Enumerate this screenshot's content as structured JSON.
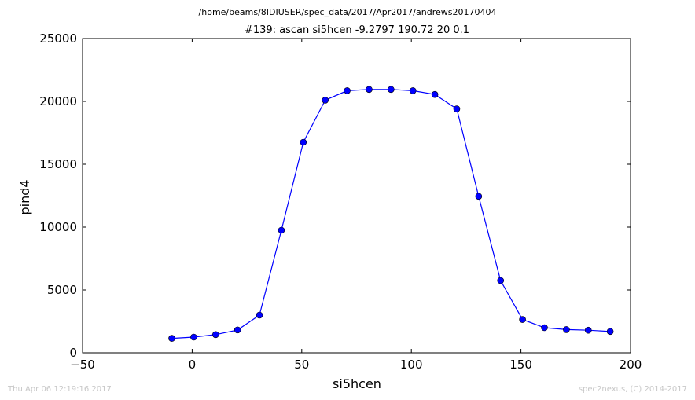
{
  "header": {
    "path": "/home/beams/8IDIUSER/spec_data/2017/Apr2017/andrews20170404",
    "scan_title": "#139: ascan  si5hcen -9.2797 190.72  20 0.1"
  },
  "footer": {
    "timestamp": "Thu Apr 06 12:19:16 2017",
    "credit": "spec2nexus, (C) 2014-2017"
  },
  "chart_data": {
    "type": "line",
    "xlabel": "si5hcen",
    "ylabel": "pind4",
    "xlim": [
      -50,
      200
    ],
    "ylim": [
      0,
      25000
    ],
    "xticks": [
      -50,
      0,
      50,
      100,
      150,
      200
    ],
    "xtick_labels": [
      "−50",
      "0",
      "50",
      "100",
      "150",
      "200"
    ],
    "yticks": [
      0,
      5000,
      10000,
      15000,
      20000,
      25000
    ],
    "ytick_labels": [
      "0",
      "5000",
      "10000",
      "15000",
      "20000",
      "25000"
    ],
    "grid": false,
    "color": "#0000ff",
    "marker": "circle",
    "series": [
      {
        "x": [
          -9.28,
          0.72,
          10.72,
          20.72,
          30.72,
          40.72,
          50.72,
          60.72,
          70.72,
          80.72,
          90.72,
          100.72,
          110.72,
          120.72,
          130.72,
          140.72,
          150.72,
          160.72,
          170.72,
          180.72,
          190.72
        ],
        "y": [
          1150,
          1250,
          1450,
          1820,
          3000,
          9750,
          16750,
          20100,
          20850,
          20950,
          20950,
          20850,
          20550,
          19400,
          12450,
          5750,
          2650,
          2000,
          1850,
          1800,
          1700
        ]
      }
    ]
  }
}
